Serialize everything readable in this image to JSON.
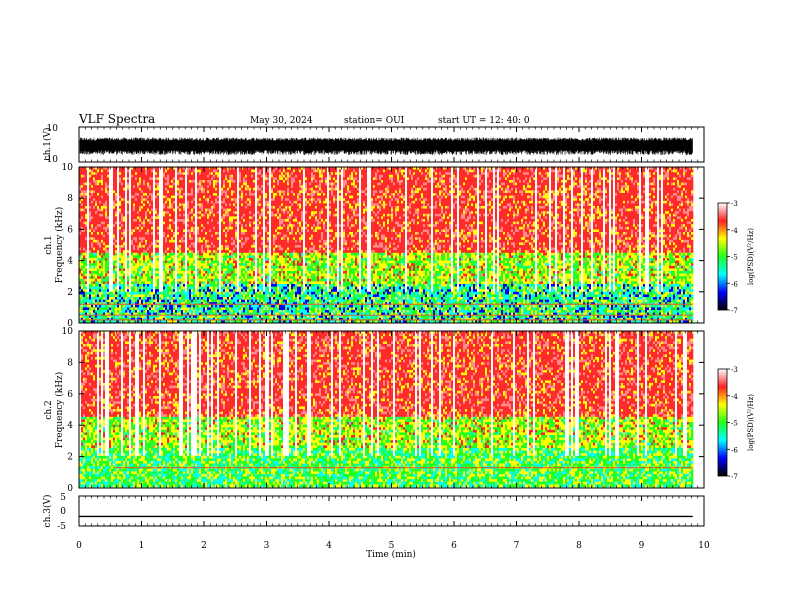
{
  "header": {
    "title": "VLF Spectra",
    "date": "May 30, 2024",
    "station": "station= OUI",
    "start": "start  UT  =   12: 40: 0"
  },
  "colors": {
    "colormap": [
      "#ffffff",
      "#ff2222",
      "#ffff00",
      "#22ff22",
      "#00ffff",
      "#0000ff",
      "#000000"
    ],
    "trace": "#000000"
  },
  "chart_data": [
    {
      "type": "line",
      "panel": "waveform-ch1",
      "ylabel": "ch.1(V)",
      "ylim": [
        -10,
        10
      ],
      "yticks": [
        10,
        -10
      ],
      "description_range": [
        -6,
        4
      ]
    },
    {
      "type": "heatmap",
      "panel": "spectrogram-ch1",
      "ylabel": "ch.1",
      "ylabel2": "Frequency (kHz)",
      "ylim": [
        0,
        10
      ],
      "yticks": [
        0,
        2,
        4,
        6,
        8,
        10
      ],
      "xlim": [
        0,
        10
      ],
      "colorbar": {
        "label": "log(PSD)(V²/Hz)",
        "range": [
          -7,
          -3
        ],
        "ticks": [
          -3,
          -4,
          -5,
          -6,
          -7
        ]
      }
    },
    {
      "type": "heatmap",
      "panel": "spectrogram-ch2",
      "ylabel": "ch.2",
      "ylabel2": "Frequency (kHz)",
      "ylim": [
        0,
        10
      ],
      "yticks": [
        0,
        2,
        4,
        6,
        8,
        10
      ],
      "xlim": [
        0,
        10
      ],
      "colorbar": {
        "label": "log(PSD)(V²/Hz)",
        "range": [
          -7,
          -3
        ],
        "ticks": [
          -3,
          -4,
          -5,
          -6,
          -7
        ]
      }
    },
    {
      "type": "line",
      "panel": "waveform-ch3",
      "ylabel": "ch.3(V)",
      "ylim": [
        -5,
        5
      ],
      "yticks": [
        5,
        0,
        -5
      ],
      "value": -1.8
    }
  ],
  "xaxis": {
    "label": "Time (min)",
    "ticks": [
      0,
      1,
      2,
      3,
      4,
      5,
      6,
      7,
      8,
      9,
      10
    ],
    "data_end": 9.82
  }
}
